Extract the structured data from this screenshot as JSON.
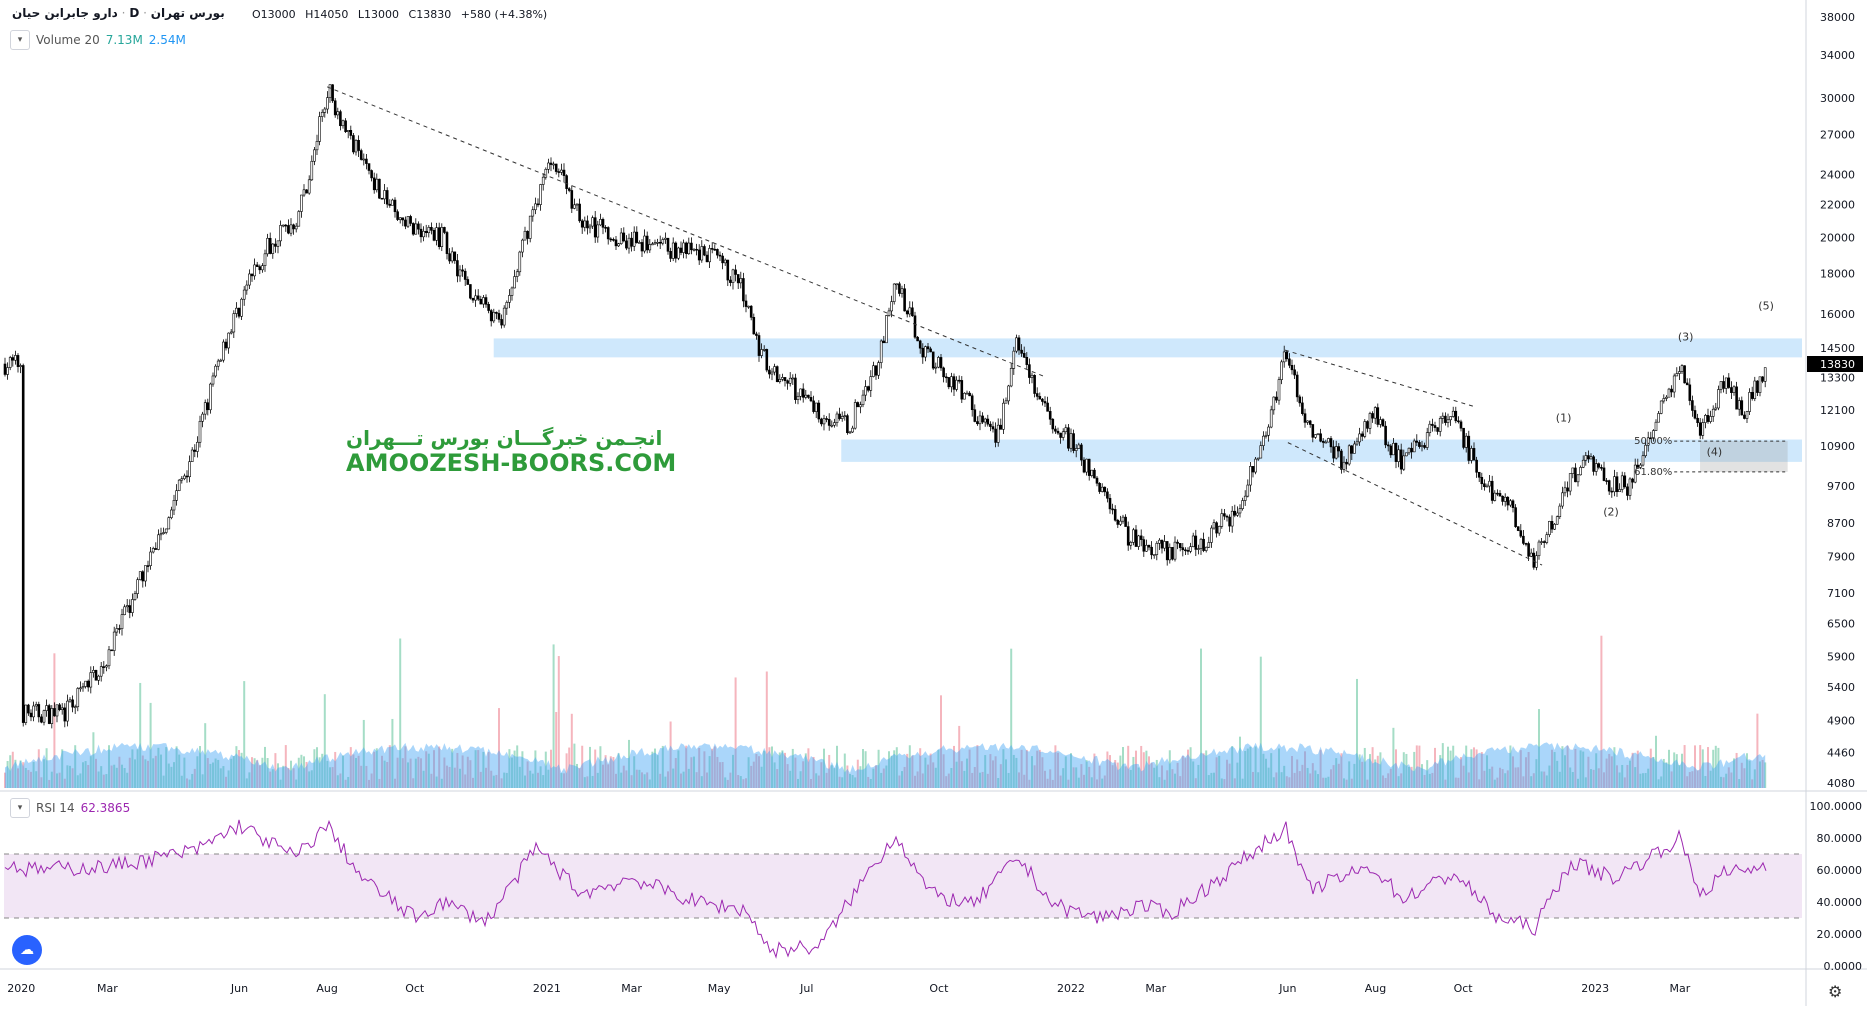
{
  "header": {
    "symbol_name": "دارو جابرابن حیان",
    "exchange": "بورس تهران",
    "interval": "D",
    "open": "O13000",
    "high": "H14050",
    "low": "L13000",
    "close": "C13830",
    "change": "+580 (+4.38%)"
  },
  "volume_legend": {
    "label": "Volume 20",
    "value1": "7.13M",
    "value2": "2.54M"
  },
  "rsi_legend": {
    "label": "RSI 14",
    "value": "62.3865"
  },
  "watermark": {
    "persian": "انجـمن خبرگـــان بورس تـــهران",
    "latin": "AMOOZESH-BOORS.COM"
  },
  "colors": {
    "watermark": "#2e9b3a",
    "zone": "#bbdefb",
    "rsi": "#9c27b0",
    "rsi_band": "#e9d5ee",
    "volume_ma": "#42a5f5",
    "vol_up": "#8fd5b8",
    "vol_down": "#f3a3ad",
    "last_price_bg": "#000000"
  },
  "chart_data": {
    "type": "candlestick",
    "price_axis": {
      "scale": "log",
      "ticks": [
        4080,
        4460,
        4900,
        5400,
        5900,
        6500,
        7100,
        7900,
        8700,
        9700,
        10900,
        12100,
        13300,
        14500,
        16000,
        18000,
        20000,
        22000,
        24000,
        27000,
        30000,
        34000,
        38000
      ]
    },
    "last_price_label": "13830",
    "time_axis": [
      "2020",
      "Mar",
      "Jun",
      "Aug",
      "Oct",
      "2021",
      "Mar",
      "May",
      "Jul",
      "Oct",
      "2022",
      "Mar",
      "Jun",
      "Aug",
      "Oct",
      "2023",
      "Mar"
    ],
    "price_path": [
      {
        "t": "2020-01-01",
        "p": 5000
      },
      {
        "t": "2020-02-01",
        "p": 5000
      },
      {
        "t": "2020-03-01",
        "p": 5900
      },
      {
        "t": "2020-03-20",
        "p": 7100
      },
      {
        "t": "2020-04-10",
        "p": 8700
      },
      {
        "t": "2020-05-01",
        "p": 10900
      },
      {
        "t": "2020-05-20",
        "p": 14500
      },
      {
        "t": "2020-06-10",
        "p": 18000
      },
      {
        "t": "2020-06-25",
        "p": 20000
      },
      {
        "t": "2020-07-10",
        "p": 21000
      },
      {
        "t": "2020-07-20",
        "p": 24000
      },
      {
        "t": "2020-08-01",
        "p": 31000
      },
      {
        "t": "2020-08-20",
        "p": 26000
      },
      {
        "t": "2020-09-20",
        "p": 21000
      },
      {
        "t": "2020-10-20",
        "p": 20000
      },
      {
        "t": "2020-11-10",
        "p": 17000
      },
      {
        "t": "2020-12-01",
        "p": 15500
      },
      {
        "t": "2020-12-20",
        "p": 21000
      },
      {
        "t": "2021-01-05",
        "p": 25500
      },
      {
        "t": "2021-01-25",
        "p": 21000
      },
      {
        "t": "2021-02-20",
        "p": 20000
      },
      {
        "t": "2021-03-15",
        "p": 19500
      },
      {
        "t": "2021-04-25",
        "p": 19000
      },
      {
        "t": "2021-05-15",
        "p": 17500
      },
      {
        "t": "2021-05-30",
        "p": 14200
      },
      {
        "t": "2021-06-20",
        "p": 13000
      },
      {
        "t": "2021-07-10",
        "p": 12000
      },
      {
        "t": "2021-07-30",
        "p": 11500
      },
      {
        "t": "2021-08-20",
        "p": 14000
      },
      {
        "t": "2021-09-01",
        "p": 17500
      },
      {
        "t": "2021-09-20",
        "p": 14500
      },
      {
        "t": "2021-10-20",
        "p": 12500
      },
      {
        "t": "2021-11-10",
        "p": 11000
      },
      {
        "t": "2021-11-25",
        "p": 14800
      },
      {
        "t": "2021-12-10",
        "p": 12300
      },
      {
        "t": "2022-01-01",
        "p": 11000
      },
      {
        "t": "2022-01-20",
        "p": 9700
      },
      {
        "t": "2022-02-10",
        "p": 8400
      },
      {
        "t": "2022-03-10",
        "p": 8000
      },
      {
        "t": "2022-04-01",
        "p": 8200
      },
      {
        "t": "2022-04-25",
        "p": 9000
      },
      {
        "t": "2022-05-15",
        "p": 10900
      },
      {
        "t": "2022-05-30",
        "p": 14300
      },
      {
        "t": "2022-06-15",
        "p": 11500
      },
      {
        "t": "2022-07-10",
        "p": 10400
      },
      {
        "t": "2022-07-30",
        "p": 12000
      },
      {
        "t": "2022-08-20",
        "p": 10300
      },
      {
        "t": "2022-09-10",
        "p": 11500
      },
      {
        "t": "2022-09-25",
        "p": 11800
      },
      {
        "t": "2022-10-15",
        "p": 9700
      },
      {
        "t": "2022-11-05",
        "p": 9000
      },
      {
        "t": "2022-11-20",
        "p": 7800
      },
      {
        "t": "2022-12-10",
        "p": 9400
      },
      {
        "t": "2022-12-25",
        "p": 10700
      },
      {
        "t": "2023-01-10",
        "p": 9800
      },
      {
        "t": "2023-01-25",
        "p": 9700
      },
      {
        "t": "2023-02-15",
        "p": 12000
      },
      {
        "t": "2023-03-01",
        "p": 14000
      },
      {
        "t": "2023-03-15",
        "p": 11200
      },
      {
        "t": "2023-04-01",
        "p": 13300
      },
      {
        "t": "2023-04-15",
        "p": 12000
      },
      {
        "t": "2023-04-30",
        "p": 13830
      }
    ],
    "zones": [
      {
        "from": "2020-11-25",
        "to": "end",
        "low": 14100,
        "high": 14900
      },
      {
        "from": "2021-07-25",
        "to": "end",
        "low": 10400,
        "high": 11100
      }
    ],
    "trendlines": [
      {
        "t1": "2020-08-01",
        "p1": 31000,
        "t2": "2021-12-15",
        "p2": 13300
      },
      {
        "t1": "2022-05-30",
        "p1": 14400,
        "t2": "2022-10-10",
        "p2": 12200
      },
      {
        "t1": "2022-06-01",
        "p1": 11000,
        "t2": "2022-11-25",
        "p2": 7700
      }
    ],
    "fibonacci": [
      {
        "label": "50.00%",
        "price": 11050
      },
      {
        "label": "61.80%",
        "price": 10100
      }
    ],
    "wave_labels": [
      {
        "text": "(1)",
        "t": "2022-12-10",
        "p": 11700
      },
      {
        "text": "(2)",
        "t": "2023-01-12",
        "p": 8900
      },
      {
        "text": "(3)",
        "t": "2023-03-05",
        "p": 14800
      },
      {
        "text": "(4)",
        "t": "2023-03-25",
        "p": 10600
      },
      {
        "text": "(5)",
        "t": "2023-04-30",
        "p": 16200
      }
    ],
    "rsi": {
      "axis_ticks": [
        "100.0000",
        "80.0000",
        "60.0000",
        "40.0000",
        "20.0000",
        "0.0000"
      ],
      "bands": [
        30,
        70
      ],
      "last": 62.3865,
      "path": [
        {
          "t": "2020-01-01",
          "v": 60
        },
        {
          "t": "2020-03-01",
          "v": 62
        },
        {
          "t": "2020-05-01",
          "v": 72
        },
        {
          "t": "2020-06-01",
          "v": 88
        },
        {
          "t": "2020-07-10",
          "v": 68
        },
        {
          "t": "2020-08-01",
          "v": 88
        },
        {
          "t": "2020-08-25",
          "v": 55
        },
        {
          "t": "2020-10-01",
          "v": 30
        },
        {
          "t": "2020-10-20",
          "v": 40
        },
        {
          "t": "2020-11-20",
          "v": 28
        },
        {
          "t": "2020-12-25",
          "v": 74
        },
        {
          "t": "2021-01-25",
          "v": 45
        },
        {
          "t": "2021-03-01",
          "v": 55
        },
        {
          "t": "2021-04-15",
          "v": 40
        },
        {
          "t": "2021-05-20",
          "v": 35
        },
        {
          "t": "2021-06-05",
          "v": 10
        },
        {
          "t": "2021-07-10",
          "v": 12
        },
        {
          "t": "2021-08-10",
          "v": 55
        },
        {
          "t": "2021-09-01",
          "v": 82
        },
        {
          "t": "2021-09-25",
          "v": 45
        },
        {
          "t": "2021-10-25",
          "v": 38
        },
        {
          "t": "2021-11-25",
          "v": 68
        },
        {
          "t": "2021-12-20",
          "v": 38
        },
        {
          "t": "2022-01-20",
          "v": 30
        },
        {
          "t": "2022-02-20",
          "v": 38
        },
        {
          "t": "2022-03-10",
          "v": 32
        },
        {
          "t": "2022-04-15",
          "v": 55
        },
        {
          "t": "2022-05-30",
          "v": 87
        },
        {
          "t": "2022-06-15",
          "v": 48
        },
        {
          "t": "2022-07-30",
          "v": 62
        },
        {
          "t": "2022-08-20",
          "v": 42
        },
        {
          "t": "2022-09-25",
          "v": 58
        },
        {
          "t": "2022-10-25",
          "v": 30
        },
        {
          "t": "2022-11-20",
          "v": 24
        },
        {
          "t": "2022-12-15",
          "v": 65
        },
        {
          "t": "2023-01-15",
          "v": 55
        },
        {
          "t": "2023-03-01",
          "v": 80
        },
        {
          "t": "2023-03-15",
          "v": 45
        },
        {
          "t": "2023-04-01",
          "v": 58
        },
        {
          "t": "2023-04-30",
          "v": 62.39
        }
      ]
    }
  }
}
